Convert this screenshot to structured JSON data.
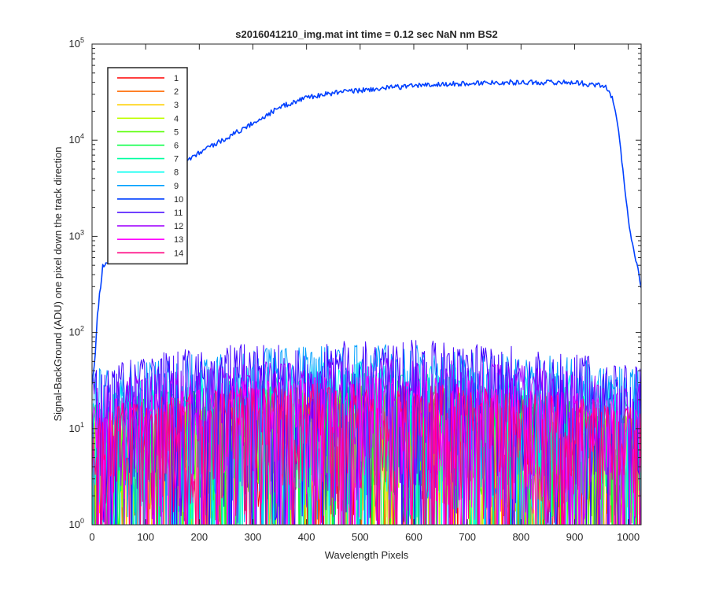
{
  "chart_data": {
    "type": "line",
    "title": "s2016041210_img.mat int time = 0.12 sec  NaN nm BS2",
    "xlabel": "Wavelength Pixels",
    "ylabel": "Signal-BackGround (ADU) one pixel down the track direction",
    "xlim": [
      0,
      1024
    ],
    "ylim": [
      1,
      100000
    ],
    "yscale": "log",
    "grid": false,
    "legend_position": "top-left",
    "x_ticks": [
      0,
      100,
      200,
      300,
      400,
      500,
      600,
      700,
      800,
      900,
      1000
    ],
    "x_tick_labels": [
      "0",
      "100",
      "200",
      "300",
      "400",
      "500",
      "600",
      "700",
      "800",
      "900",
      "1000"
    ],
    "y_ticks": [
      1,
      10,
      100,
      1000,
      10000,
      100000
    ],
    "y_tick_labels": [
      {
        "base": "10",
        "exp": "0"
      },
      {
        "base": "10",
        "exp": "1"
      },
      {
        "base": "10",
        "exp": "2"
      },
      {
        "base": "10",
        "exp": "3"
      },
      {
        "base": "10",
        "exp": "4"
      },
      {
        "base": "10",
        "exp": "5"
      }
    ],
    "series": [
      {
        "name": "1",
        "color": "#ff0000",
        "profile": "noise",
        "level_max": 20
      },
      {
        "name": "2",
        "color": "#ff6a00",
        "profile": "noise",
        "level_max": 22
      },
      {
        "name": "3",
        "color": "#ffd000",
        "profile": "noise",
        "level_max": 24
      },
      {
        "name": "4",
        "color": "#bfff00",
        "profile": "noise",
        "level_max": 26
      },
      {
        "name": "5",
        "color": "#55ff00",
        "profile": "noise",
        "level_max": 28
      },
      {
        "name": "6",
        "color": "#00ff40",
        "profile": "noise",
        "level_max": 32
      },
      {
        "name": "7",
        "color": "#00ffa0",
        "profile": "noise",
        "level_max": 38
      },
      {
        "name": "8",
        "color": "#00fff0",
        "profile": "noise",
        "level_max": 50
      },
      {
        "name": "9",
        "color": "#00a0ff",
        "profile": "noise",
        "level_max": 75
      },
      {
        "name": "10",
        "color": "#0040ff",
        "profile": "signal",
        "x": [
          0,
          5,
          10,
          20,
          30,
          50,
          70,
          100,
          130,
          160,
          200,
          250,
          300,
          350,
          400,
          450,
          500,
          550,
          600,
          650,
          700,
          750,
          800,
          850,
          900,
          930,
          950,
          960,
          970,
          980,
          990,
          1000,
          1010,
          1020,
          1024
        ],
        "y": [
          30,
          50,
          150,
          500,
          550,
          600,
          1000,
          2000,
          3500,
          5500,
          7500,
          10500,
          15000,
          22000,
          28000,
          31000,
          33000,
          35000,
          37000,
          38000,
          39000,
          40000,
          40000,
          40000,
          40000,
          38000,
          37000,
          35000,
          28000,
          15000,
          5000,
          1500,
          700,
          400,
          300
        ]
      },
      {
        "name": "11",
        "color": "#4000ff",
        "profile": "noise",
        "level_max": 85
      },
      {
        "name": "12",
        "color": "#a000ff",
        "profile": "noise",
        "level_max": 55
      },
      {
        "name": "13",
        "color": "#ff00ff",
        "profile": "noise",
        "level_max": 35
      },
      {
        "name": "14",
        "color": "#ff0080",
        "profile": "noise",
        "level_max": 30
      }
    ]
  }
}
